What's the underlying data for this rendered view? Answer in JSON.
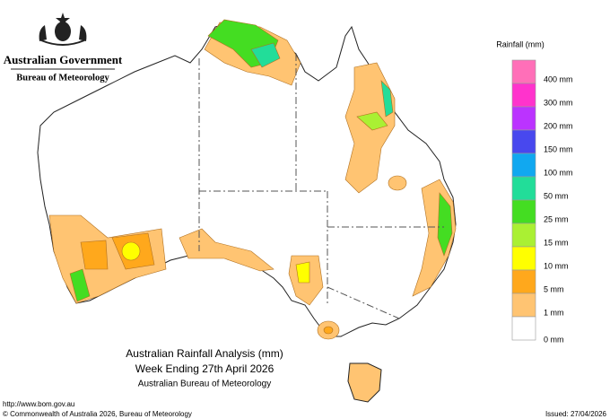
{
  "header": {
    "agency": "Australian Government",
    "bureau": "Bureau of Meteorology"
  },
  "legend": {
    "title": "Rainfall (mm)",
    "items": [
      {
        "label": "400 mm",
        "color": "#ff6fb8"
      },
      {
        "label": "300 mm",
        "color": "#ff33cc"
      },
      {
        "label": "200 mm",
        "color": "#bb33ff"
      },
      {
        "label": "150 mm",
        "color": "#4848ee"
      },
      {
        "label": "100 mm",
        "color": "#11a8f0"
      },
      {
        "label": "50 mm",
        "color": "#22dd99"
      },
      {
        "label": "25 mm",
        "color": "#44dd22"
      },
      {
        "label": "15 mm",
        "color": "#aaf033"
      },
      {
        "label": "10 mm",
        "color": "#ffff00"
      },
      {
        "label": "5 mm",
        "color": "#ffa81c"
      },
      {
        "label": "1 mm",
        "color": "#ffc472"
      },
      {
        "label": "0 mm",
        "color": "#ffffff"
      }
    ]
  },
  "caption": {
    "title": "Australian Rainfall Analysis (mm)",
    "period": "Week Ending 27th April 2026",
    "source": "Australian Bureau of Meteorology"
  },
  "footer": {
    "url": "http://www.bom.gov.au",
    "copyright": "© Commonwealth of Australia 2026, Bureau of Meteorology",
    "issued": "Issued: 27/04/2026"
  }
}
